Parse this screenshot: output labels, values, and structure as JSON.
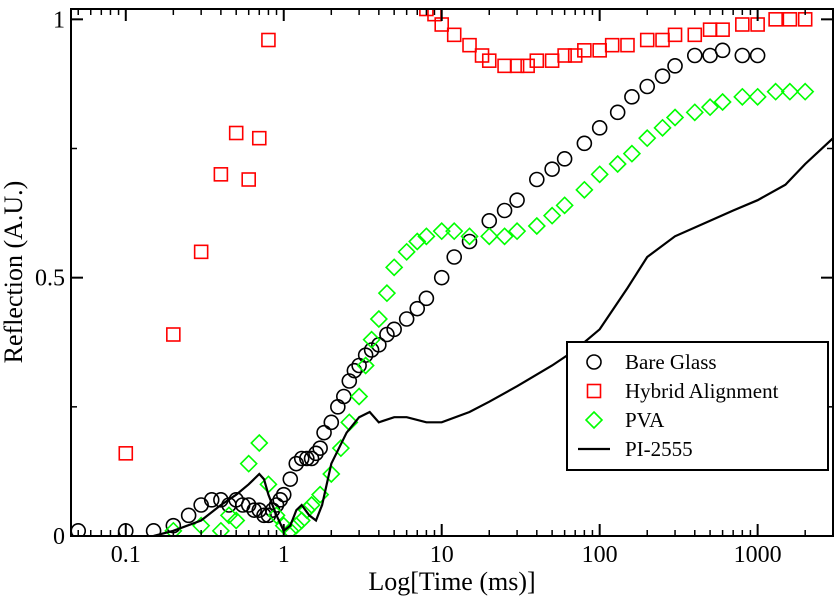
{
  "chart_data": {
    "type": "scatter",
    "xscale": "log",
    "xlim": [
      0.045,
      3000
    ],
    "ylim": [
      0,
      1.02
    ],
    "xlabel": "Log[Time (ms)]",
    "ylabel": "Reflection (A.U.)",
    "grid": false,
    "legend_position": "bottom-right",
    "x_ticks": [
      {
        "value": 0.1,
        "label": "0.1"
      },
      {
        "value": 1,
        "label": "1"
      },
      {
        "value": 10,
        "label": "10"
      },
      {
        "value": 100,
        "label": "100"
      },
      {
        "value": 1000,
        "label": "1000"
      }
    ],
    "y_ticks": [
      {
        "value": 0,
        "label": "0"
      },
      {
        "value": 0.5,
        "label": "0.5"
      },
      {
        "value": 1,
        "label": "1"
      }
    ],
    "series": [
      {
        "name": "Bare Glass",
        "marker": "circle",
        "color": "#000000",
        "x": [
          0.05,
          0.1,
          0.15,
          0.2,
          0.25,
          0.3,
          0.35,
          0.4,
          0.45,
          0.5,
          0.55,
          0.6,
          0.65,
          0.7,
          0.75,
          0.8,
          0.85,
          0.9,
          0.95,
          1.0,
          1.1,
          1.2,
          1.3,
          1.4,
          1.5,
          1.6,
          1.7,
          1.8,
          2.0,
          2.2,
          2.4,
          2.6,
          2.8,
          3.0,
          3.3,
          3.6,
          4.0,
          4.5,
          5,
          6,
          7,
          8,
          10,
          12,
          15,
          20,
          25,
          30,
          40,
          50,
          60,
          80,
          100,
          130,
          160,
          200,
          250,
          300,
          400,
          500,
          600,
          800,
          1000
        ],
        "y": [
          0.01,
          0.01,
          0.01,
          0.02,
          0.04,
          0.06,
          0.07,
          0.07,
          0.06,
          0.07,
          0.06,
          0.06,
          0.05,
          0.05,
          0.04,
          0.04,
          0.05,
          0.06,
          0.07,
          0.08,
          0.11,
          0.14,
          0.15,
          0.15,
          0.15,
          0.16,
          0.17,
          0.2,
          0.22,
          0.25,
          0.27,
          0.3,
          0.32,
          0.33,
          0.35,
          0.36,
          0.37,
          0.39,
          0.4,
          0.42,
          0.44,
          0.46,
          0.5,
          0.54,
          0.57,
          0.61,
          0.63,
          0.65,
          0.69,
          0.71,
          0.73,
          0.76,
          0.79,
          0.82,
          0.85,
          0.87,
          0.89,
          0.91,
          0.93,
          0.93,
          0.94,
          0.93,
          0.93
        ]
      },
      {
        "name": "Hybrid Alignment",
        "marker": "square",
        "color": "#ff0000",
        "x": [
          0.1,
          0.2,
          0.3,
          0.4,
          0.5,
          0.6,
          0.7,
          0.8,
          8,
          9,
          10,
          12,
          15,
          18,
          20,
          25,
          30,
          35,
          40,
          50,
          60,
          70,
          80,
          100,
          120,
          150,
          200,
          250,
          300,
          400,
          500,
          600,
          800,
          1000,
          1300,
          1600,
          2000
        ],
        "y": [
          0.16,
          0.39,
          0.55,
          0.7,
          0.78,
          0.69,
          0.77,
          0.96,
          1.02,
          1.01,
          0.99,
          0.97,
          0.95,
          0.93,
          0.92,
          0.91,
          0.91,
          0.91,
          0.92,
          0.92,
          0.93,
          0.93,
          0.94,
          0.94,
          0.95,
          0.95,
          0.96,
          0.96,
          0.97,
          0.97,
          0.98,
          0.98,
          0.99,
          0.99,
          1.0,
          1.0,
          1.0
        ]
      },
      {
        "name": "PVA",
        "marker": "diamond",
        "color": "#00ff00",
        "x": [
          0.2,
          0.3,
          0.4,
          0.45,
          0.5,
          0.6,
          0.7,
          0.8,
          0.9,
          1.0,
          1.1,
          1.2,
          1.3,
          1.4,
          1.5,
          1.7,
          2.0,
          2.3,
          2.6,
          3.0,
          3.3,
          3.6,
          4.0,
          4.5,
          5,
          6,
          7,
          8,
          10,
          12,
          15,
          20,
          25,
          30,
          40,
          50,
          60,
          80,
          100,
          130,
          160,
          200,
          250,
          300,
          400,
          500,
          600,
          800,
          1000,
          1300,
          1600,
          2000
        ],
        "y": [
          0.01,
          0.02,
          0.01,
          0.04,
          0.03,
          0.14,
          0.18,
          0.1,
          0.04,
          0.02,
          0.01,
          0.02,
          0.03,
          0.05,
          0.06,
          0.08,
          0.12,
          0.17,
          0.22,
          0.27,
          0.33,
          0.38,
          0.42,
          0.47,
          0.52,
          0.55,
          0.57,
          0.58,
          0.59,
          0.59,
          0.58,
          0.58,
          0.58,
          0.59,
          0.6,
          0.62,
          0.64,
          0.67,
          0.7,
          0.72,
          0.74,
          0.77,
          0.79,
          0.81,
          0.82,
          0.83,
          0.84,
          0.85,
          0.85,
          0.86,
          0.86,
          0.86
        ]
      },
      {
        "name": "PI-2555",
        "marker": "line",
        "color": "#000000",
        "x": [
          0.15,
          0.2,
          0.3,
          0.4,
          0.5,
          0.6,
          0.7,
          0.75,
          0.8,
          0.9,
          1.0,
          1.1,
          1.2,
          1.3,
          1.45,
          1.6,
          1.75,
          2.0,
          2.5,
          3.0,
          3.5,
          4.0,
          5,
          6,
          8,
          10,
          15,
          20,
          30,
          50,
          70,
          100,
          150,
          200,
          300,
          500,
          700,
          1000,
          1500,
          2000,
          3000
        ],
        "y": [
          0.0,
          0.01,
          0.03,
          0.06,
          0.08,
          0.1,
          0.12,
          0.11,
          0.08,
          0.04,
          0.01,
          0.02,
          0.05,
          0.06,
          0.04,
          0.03,
          0.06,
          0.14,
          0.2,
          0.23,
          0.24,
          0.22,
          0.23,
          0.23,
          0.22,
          0.22,
          0.24,
          0.26,
          0.29,
          0.33,
          0.36,
          0.4,
          0.48,
          0.54,
          0.58,
          0.61,
          0.63,
          0.65,
          0.68,
          0.72,
          0.77
        ]
      }
    ]
  }
}
